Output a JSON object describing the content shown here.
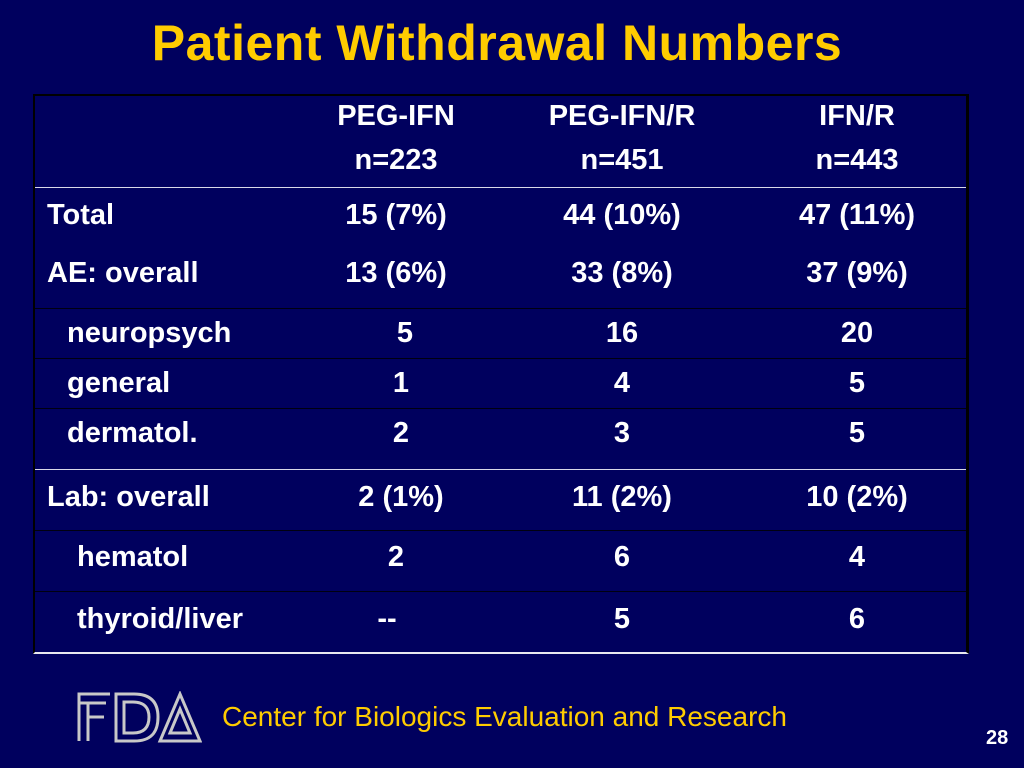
{
  "slide": {
    "title": "Patient Withdrawal Numbers",
    "footer": "Center for Biologics Evaluation and Research",
    "page_number": "28",
    "logo_text": "FDA",
    "colors": {
      "background": "#00005e",
      "title": "#ffcc00",
      "text": "#ffffff"
    }
  },
  "table": {
    "columns": [
      {
        "name": "PEG-IFN",
        "n": "n=223"
      },
      {
        "name": "PEG-IFN/R",
        "n": "n=451"
      },
      {
        "name": "IFN/R",
        "n": "n=443"
      }
    ],
    "rows": [
      {
        "label": "Total",
        "values": [
          "15 (7%)",
          "44 (10%)",
          "47 (11%)"
        ]
      },
      {
        "label": "AE: overall",
        "values": [
          "13 (6%)",
          "33 (8%)",
          "37 (9%)"
        ]
      },
      {
        "label": "neuropsych",
        "values": [
          "5",
          "16",
          "20"
        ]
      },
      {
        "label": "general",
        "values": [
          "1",
          "4",
          "5"
        ]
      },
      {
        "label": "dermatol.",
        "values": [
          "2",
          "3",
          "5"
        ]
      },
      {
        "label": "Lab: overall",
        "values": [
          "2 (1%)",
          "11 (2%)",
          "10 (2%)"
        ]
      },
      {
        "label": "hematol",
        "values": [
          "2",
          "6",
          "4"
        ]
      },
      {
        "label": "thyroid/liver",
        "values": [
          "--",
          "5",
          "6"
        ]
      }
    ]
  }
}
